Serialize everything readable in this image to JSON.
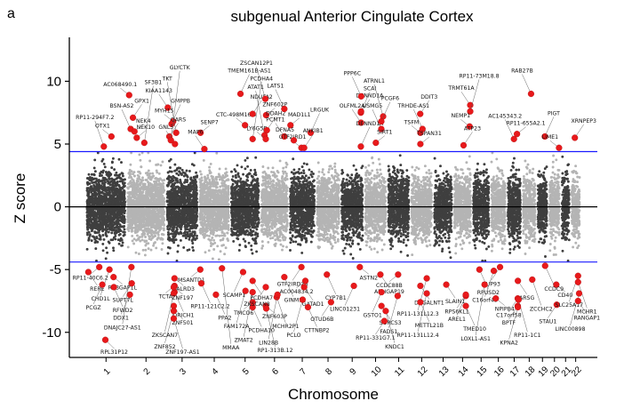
{
  "panel_label": "a",
  "chart_data": {
    "type": "scatter",
    "title": "subgenual Anterior Cingulate Cortex",
    "xlabel": "Chromosome",
    "ylabel": "Z score",
    "ylim": [
      -12,
      13.5
    ],
    "yticks": [
      "10",
      "5",
      "0",
      "-5",
      "-10"
    ],
    "ytick_values": [
      10,
      5,
      0,
      -5,
      -10
    ],
    "chromosomes": [
      "1",
      "2",
      "3",
      "4",
      "5",
      "6",
      "7",
      "8",
      "9",
      "10",
      "11",
      "12",
      "13",
      "14",
      "15",
      "16",
      "17",
      "18",
      "19",
      "20",
      "21",
      "22"
    ],
    "chrom_sizes": [
      249,
      242,
      198,
      190,
      181,
      171,
      159,
      145,
      138,
      134,
      135,
      133,
      114,
      107,
      102,
      90,
      83,
      80,
      59,
      64,
      47,
      51
    ],
    "threshold": 4.4,
    "colors": {
      "odd": "#3f3f3f",
      "even": "#b4b4b4",
      "hit": "#e8191b",
      "threshold": "#1a1aff",
      "zero": "#000000"
    },
    "positive_hits": [
      {
        "label": "AC068490.1",
        "chr": 2,
        "pos": 10,
        "z": 8.9
      },
      {
        "label": "GPX1",
        "chr": 2,
        "pos": 35,
        "z": 7.1
      },
      {
        "label": "BSN-AS2",
        "chr": 2,
        "pos": 20,
        "z": 6.2
      },
      {
        "label": "NEK4",
        "chr": 2,
        "pos": 45,
        "z": 6.0
      },
      {
        "label": "KIAA1143",
        "chr": 3,
        "pos": 5,
        "z": 7.9
      },
      {
        "label": "GMPPB",
        "chr": 3,
        "pos": 30,
        "z": 6.6
      },
      {
        "label": "MYH15",
        "chr": 3,
        "pos": 40,
        "z": 6.8
      },
      {
        "label": "QARS",
        "chr": 3,
        "pos": 15,
        "z": 5.6
      },
      {
        "label": "TKT",
        "chr": 3,
        "pos": 60,
        "z": 5.9
      },
      {
        "label": "NEK10",
        "chr": 2,
        "pos": 60,
        "z": 5.5
      },
      {
        "label": "GNL3",
        "chr": 3,
        "pos": 52,
        "z": 5.0
      },
      {
        "label": "GLYCTK",
        "chr": 3,
        "pos": 25,
        "z": 5.3
      },
      {
        "label": "OTX1",
        "chr": 1,
        "pos": 160,
        "z": 5.6
      },
      {
        "label": "SF3B1",
        "chr": 2,
        "pos": 110,
        "z": 5.1
      },
      {
        "label": "RP11-294F7.2",
        "chr": 1,
        "pos": 110,
        "z": 4.8
      },
      {
        "label": "SENP7",
        "chr": 4,
        "pos": 5,
        "z": 5.9
      },
      {
        "label": "MAP6",
        "chr": 4,
        "pos": 30,
        "z": 4.6
      },
      {
        "label": "TMEM161B-AS1",
        "chr": 5,
        "pos": 60,
        "z": 9.0
      },
      {
        "label": "CTC-498M16.4",
        "chr": 5,
        "pos": 90,
        "z": 6.5
      },
      {
        "label": "NDUFA2",
        "chr": 5,
        "pos": 140,
        "z": 7.4
      },
      {
        "label": "ZSCAN12P1",
        "chr": 6,
        "pos": 25,
        "z": 8.6
      },
      {
        "label": "ZNF602P",
        "chr": 6,
        "pos": 30,
        "z": 7.3
      },
      {
        "label": "ATAT1",
        "chr": 6,
        "pos": 20,
        "z": 5.7
      },
      {
        "label": "PCDHA4",
        "chr": 5,
        "pos": 140,
        "z": 5.4
      },
      {
        "label": "LY6G5B",
        "chr": 6,
        "pos": 28,
        "z": 5.4
      },
      {
        "label": "DDAH2",
        "chr": 6,
        "pos": 35,
        "z": 6.1
      },
      {
        "label": "LATS1",
        "chr": 6,
        "pos": 150,
        "z": 7.8
      },
      {
        "label": "MAD1L1",
        "chr": 7,
        "pos": 2,
        "z": 6.5
      },
      {
        "label": "PCMT1",
        "chr": 6,
        "pos": 150,
        "z": 5.6
      },
      {
        "label": "LRGUK",
        "chr": 7,
        "pos": 135,
        "z": 5.9
      },
      {
        "label": "GTF2IRD1",
        "chr": 7,
        "pos": 74,
        "z": 4.7
      },
      {
        "label": "DENND1A",
        "chr": 9,
        "pos": 126,
        "z": 7.5
      },
      {
        "label": "PPP6C",
        "chr": 9,
        "pos": 128,
        "z": 8.8
      },
      {
        "label": "SCAI",
        "chr": 9,
        "pos": 127,
        "z": 7.6
      },
      {
        "label": "OLFML2A",
        "chr": 9,
        "pos": 127,
        "z": 6.7
      },
      {
        "label": "DENND1A",
        "chr": 9,
        "pos": 126,
        "z": 4.8
      },
      {
        "label": "DFNA5",
        "chr": 7,
        "pos": 24,
        "z": 5.3
      },
      {
        "label": "ANKIB1",
        "chr": 7,
        "pos": 92,
        "z": 4.7
      },
      {
        "label": "USMG5",
        "chr": 10,
        "pos": 105,
        "z": 6.2
      },
      {
        "label": "SIRT1",
        "chr": 10,
        "pos": 69,
        "z": 5.1
      },
      {
        "label": "ATRNL1",
        "chr": 10,
        "pos": 117,
        "z": 7.2
      },
      {
        "label": "PCGF6",
        "chr": 10,
        "pos": 105,
        "z": 6.8
      },
      {
        "label": "TSFM",
        "chr": 12,
        "pos": 58,
        "z": 5.9
      },
      {
        "label": "DDIT3",
        "chr": 12,
        "pos": 57,
        "z": 7.4
      },
      {
        "label": "TRHDE-AS1",
        "chr": 12,
        "pos": 72,
        "z": 6.2
      },
      {
        "label": "TSPAN31",
        "chr": 12,
        "pos": 58,
        "z": 5.0
      },
      {
        "label": "TRMT61A",
        "chr": 14,
        "pos": 104,
        "z": 8.1
      },
      {
        "label": "RP11-73M18.8",
        "chr": 14,
        "pos": 104,
        "z": 7.6
      },
      {
        "label": "NEMP1",
        "chr": 14,
        "pos": 100,
        "z": 6.4
      },
      {
        "label": "ATP23",
        "chr": 14,
        "pos": 60,
        "z": 4.9
      },
      {
        "label": "RAB27B",
        "chr": 18,
        "pos": 52,
        "z": 9.0
      },
      {
        "label": "RP11-655A2.1",
        "chr": 17,
        "pos": 60,
        "z": 5.8
      },
      {
        "label": "AC145343.2",
        "chr": 17,
        "pos": 40,
        "z": 5.4
      },
      {
        "label": "PIGT",
        "chr": 19,
        "pos": 45,
        "z": 5.6
      },
      {
        "label": "LIME1",
        "chr": 20,
        "pos": 62,
        "z": 4.7
      },
      {
        "label": "XRNPEP3",
        "chr": 22,
        "pos": 20,
        "z": 5.5
      }
    ],
    "negative_hits": [
      {
        "label": "RP11-40C6.2",
        "chr": 1,
        "pos": 80,
        "z": -4.8
      },
      {
        "label": "RERE",
        "chr": 1,
        "pos": 8,
        "z": -5.2
      },
      {
        "label": "CHD1L",
        "chr": 1,
        "pos": 147,
        "z": -5.0
      },
      {
        "label": "RABGAP1L",
        "chr": 1,
        "pos": 174,
        "z": -5.6
      },
      {
        "label": "PCGZ",
        "chr": 1,
        "pos": 100,
        "z": -6.2
      },
      {
        "label": "RFWD2",
        "chr": 1,
        "pos": 176,
        "z": -6.4
      },
      {
        "label": "DDX1",
        "chr": 2,
        "pos": 15,
        "z": -7.0
      },
      {
        "label": "RPL31P12",
        "chr": 1,
        "pos": 120,
        "z": -10.6
      },
      {
        "label": "DNAJC27-AS1",
        "chr": 2,
        "pos": 25,
        "z": -4.8
      },
      {
        "label": "DALRD3",
        "chr": 3,
        "pos": 49,
        "z": -5.7
      },
      {
        "label": "SUPT7L",
        "chr": 2,
        "pos": 27,
        "z": -6.1
      },
      {
        "label": "QRICH1",
        "chr": 3,
        "pos": 49,
        "z": -6.8
      },
      {
        "label": "TCTA",
        "chr": 3,
        "pos": 49,
        "z": -6.3
      },
      {
        "label": "ZNF501",
        "chr": 3,
        "pos": 44,
        "z": -7.9
      },
      {
        "label": "ZKSCAN7",
        "chr": 3,
        "pos": 44,
        "z": -6.9
      },
      {
        "label": "ZNF197",
        "chr": 3,
        "pos": 44,
        "z": -6.4
      },
      {
        "label": "ZNF852",
        "chr": 3,
        "pos": 44,
        "z": -8.3
      },
      {
        "label": "ZNF197-AS1",
        "chr": 3,
        "pos": 44,
        "z": -8.9
      },
      {
        "label": "MSANTD1",
        "chr": 4,
        "pos": 3,
        "z": -5.0
      },
      {
        "label": "RP11-121C2.2",
        "chr": 4,
        "pos": 10,
        "z": -6.1
      },
      {
        "label": "SCAMP1",
        "chr": 5,
        "pos": 77,
        "z": -5.2
      },
      {
        "label": "PPA2",
        "chr": 4,
        "pos": 106,
        "z": -7.0
      },
      {
        "label": "FAM172A",
        "chr": 5,
        "pos": 93,
        "z": -6.7
      },
      {
        "label": "PCDHA10",
        "chr": 5,
        "pos": 140,
        "z": -8.0
      },
      {
        "label": "TMCO6",
        "chr": 5,
        "pos": 140,
        "z": -7.6
      },
      {
        "label": "PCDHA7",
        "chr": 5,
        "pos": 140,
        "z": -5.9
      },
      {
        "label": "ZMAT2",
        "chr": 5,
        "pos": 140,
        "z": -6.8
      },
      {
        "label": "ZNF603P",
        "chr": 6,
        "pos": 28,
        "z": -7.9
      },
      {
        "label": "NUP93",
        "chr": 16,
        "pos": 56,
        "z": -4.8
      },
      {
        "label": "GINM1",
        "chr": 6,
        "pos": 150,
        "z": -5.6
      },
      {
        "label": "ZKSCAN8",
        "chr": 6,
        "pos": 28,
        "z": -6.4
      },
      {
        "label": "MCHR2P1",
        "chr": 6,
        "pos": 100,
        "z": -7.2
      },
      {
        "label": "LIN28B",
        "chr": 6,
        "pos": 105,
        "z": -7.0
      },
      {
        "label": "RP1-313B.12",
        "chr": 6,
        "pos": 31,
        "z": -8.1
      },
      {
        "label": "GTF2IRD2B",
        "chr": 7,
        "pos": 74,
        "z": -4.8
      },
      {
        "label": "CYP7B1",
        "chr": 8,
        "pos": 65,
        "z": -5.4
      },
      {
        "label": "AC004834.2",
        "chr": 7,
        "pos": 100,
        "z": -5.9
      },
      {
        "label": "GATAD1",
        "chr": 7,
        "pos": 92,
        "z": -6.4
      },
      {
        "label": "PCLO",
        "chr": 7,
        "pos": 82,
        "z": -7.4
      },
      {
        "label": "ASTN2",
        "chr": 9,
        "pos": 119,
        "z": -4.8
      },
      {
        "label": "LINC01231",
        "chr": 9,
        "pos": 80,
        "z": -6.3
      },
      {
        "label": "CTTNBP2",
        "chr": 7,
        "pos": 117,
        "z": -8.0
      },
      {
        "label": "OTUD6B",
        "chr": 8,
        "pos": 92,
        "z": -7.6
      },
      {
        "label": "ARHGAP19",
        "chr": 10,
        "pos": 99,
        "z": -5.4
      },
      {
        "label": "GSTO1",
        "chr": 10,
        "pos": 106,
        "z": -6.8
      },
      {
        "label": "SORCS3",
        "chr": 10,
        "pos": 106,
        "z": -7.9
      },
      {
        "label": "RP11-331G7.1",
        "chr": 10,
        "pos": 125,
        "z": -9.1
      },
      {
        "label": "MMAA",
        "chr": 4,
        "pos": 146,
        "z": -4.9
      },
      {
        "label": "CCDC88B",
        "chr": 11,
        "pos": 64,
        "z": -5.4
      },
      {
        "label": "D4GALNT1",
        "chr": 12,
        "pos": 58,
        "z": -6.3
      },
      {
        "label": "FADS1",
        "chr": 11,
        "pos": 61,
        "z": -7.1
      },
      {
        "label": "KNDC1",
        "chr": 10,
        "pos": 135,
        "z": -8.3
      },
      {
        "label": "RP11-131L12.3",
        "chr": 12,
        "pos": 100,
        "z": -5.7
      },
      {
        "label": "METTL21B",
        "chr": 12,
        "pos": 58,
        "z": -7.6
      },
      {
        "label": "RP11-131L12.4",
        "chr": 12,
        "pos": 100,
        "z": -6.9
      },
      {
        "label": "SLAIN1",
        "chr": 13,
        "pos": 78,
        "z": -6.2
      },
      {
        "label": "AREL1",
        "chr": 14,
        "pos": 75,
        "z": -7.1
      },
      {
        "label": "RPUSD2",
        "chr": 15,
        "pos": 40,
        "z": -5.0
      },
      {
        "label": "RPS6KL1",
        "chr": 14,
        "pos": 75,
        "z": -7.0
      },
      {
        "label": "TMED10",
        "chr": 14,
        "pos": 75,
        "z": -7.9
      },
      {
        "label": "C16orf45",
        "chr": 16,
        "pos": 15,
        "z": -5.1
      },
      {
        "label": "ARSG",
        "chr": 17,
        "pos": 66,
        "z": -5.9
      },
      {
        "label": "LOXL1-AS1",
        "chr": 15,
        "pos": 74,
        "z": -6.2
      },
      {
        "label": "NPIPB4",
        "chr": 16,
        "pos": 28,
        "z": -7.3
      },
      {
        "label": "C17orf58",
        "chr": 17,
        "pos": 65,
        "z": -7.3
      },
      {
        "label": "ZCCHC2",
        "chr": 18,
        "pos": 60,
        "z": -5.8
      },
      {
        "label": "BPTF",
        "chr": 17,
        "pos": 65,
        "z": -7.9
      },
      {
        "label": "RP11-1C1",
        "chr": 17,
        "pos": 70,
        "z": -7.4
      },
      {
        "label": "KPNA2",
        "chr": 17,
        "pos": 66,
        "z": -8.0
      },
      {
        "label": "CD40",
        "chr": 20,
        "pos": 44,
        "z": -6.2
      },
      {
        "label": "STAU1",
        "chr": 20,
        "pos": 47,
        "z": -7.8
      },
      {
        "label": "CCDC9",
        "chr": 19,
        "pos": 47,
        "z": -4.7
      },
      {
        "label": "SLC25A17",
        "chr": 22,
        "pos": 41,
        "z": -5.5
      },
      {
        "label": "MCHR1",
        "chr": 22,
        "pos": 41,
        "z": -6.0
      },
      {
        "label": "LINC00898",
        "chr": 22,
        "pos": 48,
        "z": -6.9
      },
      {
        "label": "RANGAP1",
        "chr": 22,
        "pos": 41,
        "z": -7.5
      }
    ]
  }
}
